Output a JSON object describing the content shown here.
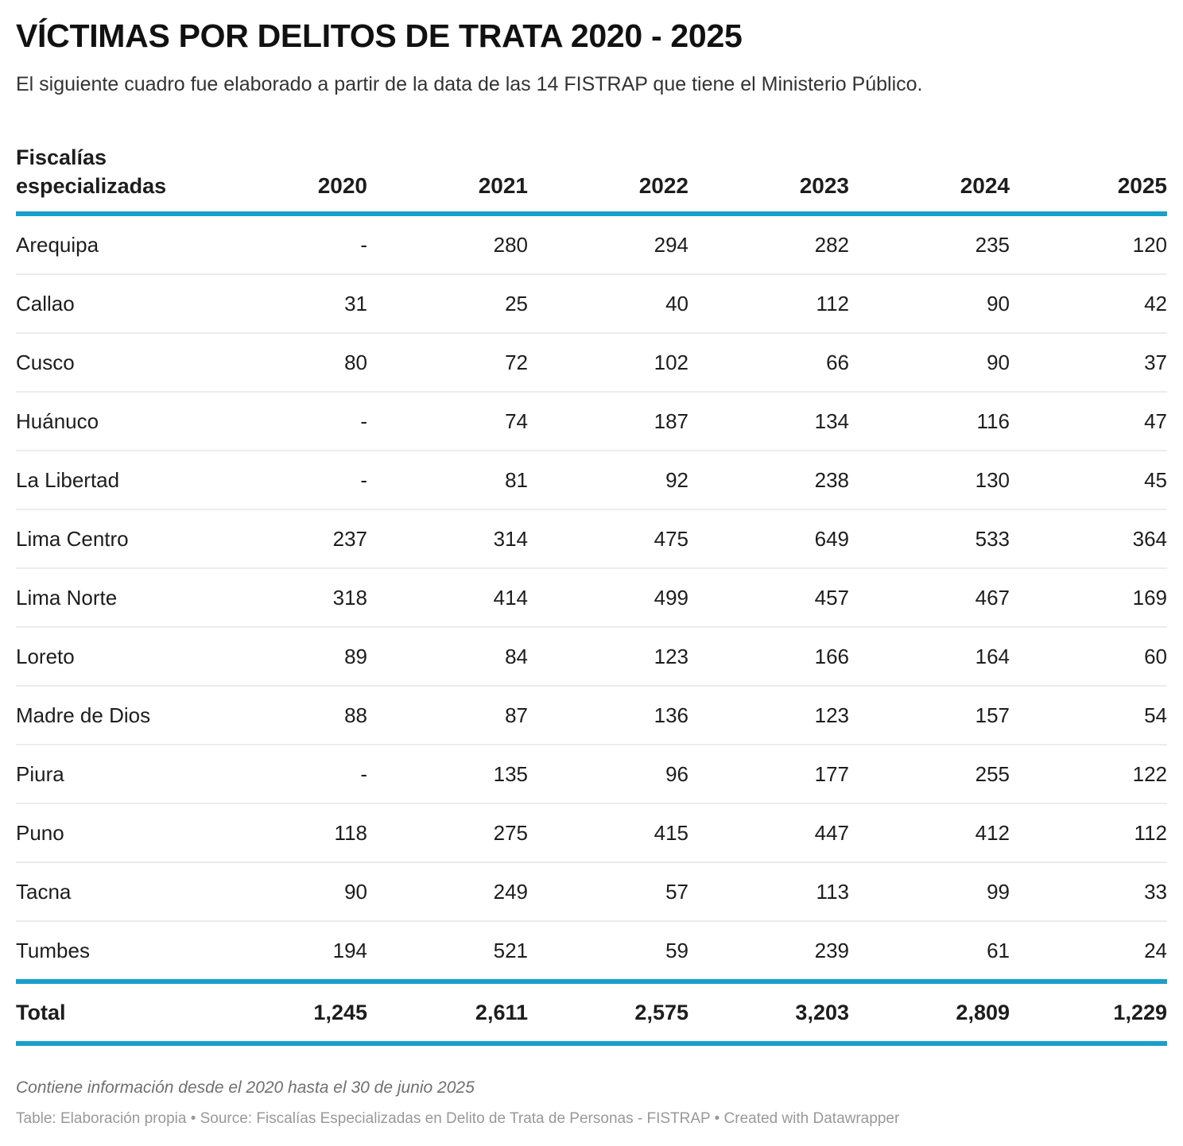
{
  "header": {
    "title": "VÍCTIMAS POR DELITOS DE TRATA 2020 - 2025",
    "subtitle": "El siguiente cuadro fue elaborado a partir de la data de las 14 FISTRAP que tiene el Ministerio Público."
  },
  "table": {
    "columns": [
      "Fiscalías especializadas",
      "2020",
      "2021",
      "2022",
      "2023",
      "2024",
      "2025"
    ],
    "first_column_lines": [
      "Fiscalías",
      "especializadas"
    ],
    "rows": [
      {
        "name": "Arequipa",
        "values": [
          "-",
          "280",
          "294",
          "282",
          "235",
          "120"
        ]
      },
      {
        "name": "Callao",
        "values": [
          "31",
          "25",
          "40",
          "112",
          "90",
          "42"
        ]
      },
      {
        "name": "Cusco",
        "values": [
          "80",
          "72",
          "102",
          "66",
          "90",
          "37"
        ]
      },
      {
        "name": "Huánuco",
        "values": [
          "-",
          "74",
          "187",
          "134",
          "116",
          "47"
        ]
      },
      {
        "name": "La Libertad",
        "values": [
          "-",
          "81",
          "92",
          "238",
          "130",
          "45"
        ]
      },
      {
        "name": "Lima Centro",
        "values": [
          "237",
          "314",
          "475",
          "649",
          "533",
          "364"
        ]
      },
      {
        "name": "Lima Norte",
        "values": [
          "318",
          "414",
          "499",
          "457",
          "467",
          "169"
        ]
      },
      {
        "name": "Loreto",
        "values": [
          "89",
          "84",
          "123",
          "166",
          "164",
          "60"
        ]
      },
      {
        "name": "Madre de Dios",
        "values": [
          "88",
          "87",
          "136",
          "123",
          "157",
          "54"
        ]
      },
      {
        "name": "Piura",
        "values": [
          "-",
          "135",
          "96",
          "177",
          "255",
          "122"
        ]
      },
      {
        "name": "Puno",
        "values": [
          "118",
          "275",
          "415",
          "447",
          "412",
          "112"
        ]
      },
      {
        "name": "Tacna",
        "values": [
          "90",
          "249",
          "57",
          "113",
          "99",
          "33"
        ]
      },
      {
        "name": "Tumbes",
        "values": [
          "194",
          "521",
          "59",
          "239",
          "61",
          "24"
        ]
      }
    ],
    "total": {
      "name": "Total",
      "values": [
        "1,245",
        "2,611",
        "2,575",
        "3,203",
        "2,809",
        "1,229"
      ]
    }
  },
  "footer": {
    "notes": "Contiene información desde el 2020 hasta el 30 de junio 2025",
    "source": "Table: Elaboración propia • Source: Fiscalías Especializadas en Delito de Trata de Personas - FISTRAP • Created with Datawrapper"
  },
  "colors": {
    "accent_rule": "#18a0cc",
    "row_divider": "#ececec",
    "text": "#1d1d1d",
    "notes": "#707070",
    "source": "#999999"
  }
}
